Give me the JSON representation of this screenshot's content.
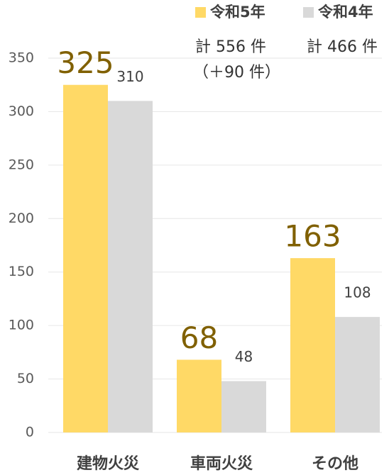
{
  "chart_data": {
    "type": "bar",
    "categories": [
      "建物火災",
      "車両火災",
      "その他"
    ],
    "series": [
      {
        "name": "令和5年",
        "color": "#ffd966",
        "values": [
          325,
          68,
          163
        ]
      },
      {
        "name": "令和4年",
        "color": "#d9d9d9",
        "values": [
          310,
          48,
          108
        ]
      }
    ],
    "ylim": [
      0,
      350
    ],
    "yticks": [
      0,
      50,
      100,
      150,
      200,
      250,
      300,
      350
    ],
    "grid": true,
    "legend": "top-right",
    "annotations": [
      "計 556 件",
      "（＋90 件）",
      "計 466 件"
    ]
  }
}
